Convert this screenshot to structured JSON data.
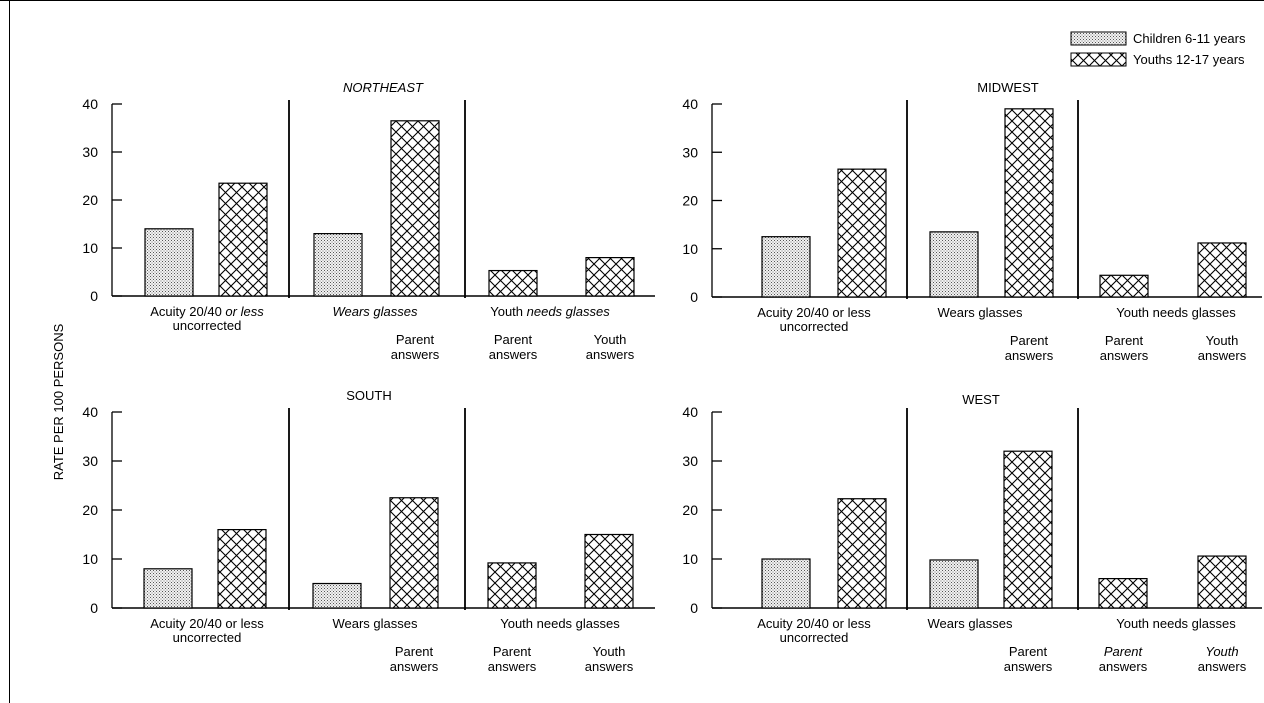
{
  "legend": {
    "entries": [
      {
        "key": "children",
        "label": "Children 6-11 years",
        "pattern": "dots"
      },
      {
        "key": "youths",
        "label": "Youths 12-17 years",
        "pattern": "crosshatch"
      }
    ],
    "position": "top-right"
  },
  "ylabel": "RATE PER 100 PERSONS",
  "chart_data": [
    {
      "type": "bar",
      "title": "NORTHEAST",
      "title_italic": true,
      "ylim": [
        0,
        40
      ],
      "yticks": [
        "0",
        "10",
        "20",
        "30",
        "40"
      ],
      "groups": [
        {
          "label_lines": [
            "Acuity 20/40 or less",
            "uncorrected"
          ],
          "italic": [
            true,
            false
          ],
          "bars": [
            {
              "series": "children",
              "value": 14
            },
            {
              "series": "youths",
              "value": 23.5
            }
          ],
          "sublabels": []
        },
        {
          "label_lines": [
            "Wears glasses"
          ],
          "italic": [
            true
          ],
          "bars": [
            {
              "series": "children",
              "value": 13
            },
            {
              "series": "youths",
              "value": 36.5
            }
          ],
          "sublabels": [
            "",
            "Parent|answers"
          ],
          "sublabel_italic": [
            false,
            false
          ]
        },
        {
          "label_lines": [
            "Youth needs glasses"
          ],
          "italic": [
            true
          ],
          "bars": [
            {
              "series": "youths",
              "value": 5.3
            },
            {
              "series": "youths",
              "value": 8
            }
          ],
          "sublabels": [
            "Parent|answers",
            "Youth|answers"
          ],
          "sublabel_italic": [
            false,
            false
          ]
        }
      ]
    },
    {
      "type": "bar",
      "title": "MIDWEST",
      "title_italic": false,
      "ylim": [
        0,
        40
      ],
      "yticks": [
        "0",
        "10",
        "20",
        "30",
        "40"
      ],
      "groups": [
        {
          "label_lines": [
            "Acuity 20/40 or less",
            "uncorrected"
          ],
          "italic": [
            false,
            false
          ],
          "bars": [
            {
              "series": "children",
              "value": 12.5
            },
            {
              "series": "youths",
              "value": 26.5
            }
          ],
          "sublabels": []
        },
        {
          "label_lines": [
            "Wears glasses"
          ],
          "italic": [
            false
          ],
          "bars": [
            {
              "series": "children",
              "value": 13.5
            },
            {
              "series": "youths",
              "value": 39
            }
          ],
          "sublabels": [
            "",
            "Parent|answers"
          ],
          "sublabel_italic": [
            false,
            false
          ]
        },
        {
          "label_lines": [
            "Youth needs glasses"
          ],
          "italic": [
            false
          ],
          "bars": [
            {
              "series": "youths",
              "value": 4.5
            },
            {
              "series": "youths",
              "value": 11.2
            }
          ],
          "sublabels": [
            "Parent|answers",
            "Youth|answers"
          ],
          "sublabel_italic": [
            false,
            false
          ]
        }
      ]
    },
    {
      "type": "bar",
      "title": "SOUTH",
      "title_italic": false,
      "ylim": [
        0,
        40
      ],
      "yticks": [
        "0",
        "10",
        "20",
        "30",
        "40"
      ],
      "groups": [
        {
          "label_lines": [
            "Acuity 20/40 or less",
            "uncorrected"
          ],
          "italic": [
            false,
            false
          ],
          "bars": [
            {
              "series": "children",
              "value": 8
            },
            {
              "series": "youths",
              "value": 16
            }
          ],
          "sublabels": []
        },
        {
          "label_lines": [
            "Wears glasses"
          ],
          "italic": [
            false
          ],
          "bars": [
            {
              "series": "children",
              "value": 5
            },
            {
              "series": "youths",
              "value": 22.5
            }
          ],
          "sublabels": [
            "",
            "Parent|answers"
          ],
          "sublabel_italic": [
            false,
            false
          ]
        },
        {
          "label_lines": [
            "Youth needs glasses"
          ],
          "italic": [
            false
          ],
          "bars": [
            {
              "series": "youths",
              "value": 9.2
            },
            {
              "series": "youths",
              "value": 15
            }
          ],
          "sublabels": [
            "Parent|answers",
            "Youth|answers"
          ],
          "sublabel_italic": [
            false,
            false
          ]
        }
      ]
    },
    {
      "type": "bar",
      "title": "WEST",
      "title_italic": false,
      "ylim": [
        0,
        40
      ],
      "yticks": [
        "0",
        "10",
        "20",
        "30",
        "40"
      ],
      "groups": [
        {
          "label_lines": [
            "Acuity 20/40 or less",
            "uncorrected"
          ],
          "italic": [
            false,
            false
          ],
          "bars": [
            {
              "series": "children",
              "value": 10
            },
            {
              "series": "youths",
              "value": 22.3
            }
          ],
          "sublabels": []
        },
        {
          "label_lines": [
            "Wears glasses"
          ],
          "italic": [
            false
          ],
          "bars": [
            {
              "series": "children",
              "value": 9.8
            },
            {
              "series": "youths",
              "value": 32
            }
          ],
          "sublabels": [
            "",
            "Parent|answers"
          ],
          "sublabel_italic": [
            true,
            false
          ]
        },
        {
          "label_lines": [
            "Youth needs glasses"
          ],
          "italic": [
            false
          ],
          "bars": [
            {
              "series": "youths",
              "value": 6
            },
            {
              "series": "youths",
              "value": 10.6
            }
          ],
          "sublabels": [
            "Parent|answers",
            "Youth|answers"
          ],
          "sublabel_italic": [
            true,
            true
          ]
        }
      ]
    }
  ]
}
